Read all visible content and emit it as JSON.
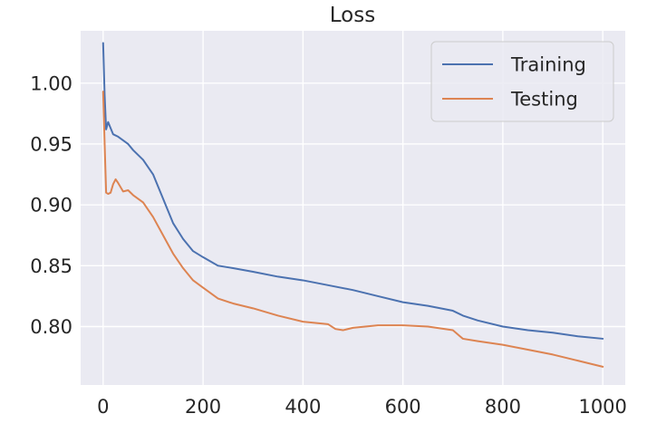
{
  "chart_data": {
    "type": "line",
    "title": "Loss",
    "xlabel": "",
    "ylabel": "",
    "xlim": [
      -45,
      1045
    ],
    "ylim": [
      0.752,
      1.043
    ],
    "x_ticks": [
      0,
      200,
      400,
      600,
      800,
      1000
    ],
    "x_tick_labels": [
      "0",
      "200",
      "400",
      "600",
      "800",
      "1000"
    ],
    "y_ticks": [
      0.8,
      0.85,
      0.9,
      0.95,
      1.0
    ],
    "y_tick_labels": [
      "0.80",
      "0.85",
      "0.90",
      "0.95",
      "1.00"
    ],
    "grid": true,
    "legend_position": "top-right",
    "colors": {
      "background": "#eaeaf2",
      "grid": "#ffffff",
      "text": "#262626"
    },
    "series": [
      {
        "name": "Training",
        "color": "#4c72b0",
        "x": [
          0,
          3,
          6,
          10,
          15,
          20,
          30,
          40,
          50,
          60,
          80,
          100,
          120,
          140,
          160,
          180,
          200,
          230,
          260,
          300,
          350,
          400,
          450,
          500,
          550,
          600,
          650,
          700,
          720,
          750,
          800,
          850,
          900,
          950,
          1000
        ],
        "y": [
          1.033,
          0.99,
          0.962,
          0.968,
          0.963,
          0.958,
          0.956,
          0.953,
          0.95,
          0.945,
          0.937,
          0.925,
          0.905,
          0.885,
          0.872,
          0.862,
          0.857,
          0.85,
          0.848,
          0.845,
          0.841,
          0.838,
          0.834,
          0.83,
          0.825,
          0.82,
          0.817,
          0.813,
          0.809,
          0.805,
          0.8,
          0.797,
          0.795,
          0.792,
          0.79
        ]
      },
      {
        "name": "Testing",
        "color": "#dd8452",
        "x": [
          0,
          3,
          6,
          10,
          15,
          20,
          25,
          30,
          40,
          50,
          60,
          80,
          100,
          120,
          140,
          160,
          180,
          200,
          230,
          260,
          300,
          350,
          400,
          450,
          465,
          480,
          500,
          550,
          600,
          650,
          700,
          720,
          750,
          800,
          850,
          900,
          950,
          1000
        ],
        "y": [
          0.993,
          0.95,
          0.91,
          0.909,
          0.91,
          0.917,
          0.921,
          0.918,
          0.911,
          0.912,
          0.908,
          0.902,
          0.89,
          0.875,
          0.86,
          0.848,
          0.838,
          0.832,
          0.823,
          0.819,
          0.815,
          0.809,
          0.804,
          0.802,
          0.798,
          0.797,
          0.799,
          0.801,
          0.801,
          0.8,
          0.797,
          0.79,
          0.788,
          0.785,
          0.781,
          0.777,
          0.772,
          0.767
        ]
      }
    ]
  }
}
